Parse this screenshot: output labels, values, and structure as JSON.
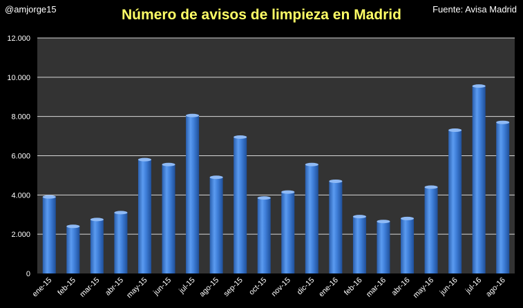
{
  "header": {
    "author": "@amjorge15",
    "source": "Fuente: Avisa Madrid"
  },
  "colors": {
    "background": "#000000",
    "plot_area": "#333333",
    "gridline": "#d9d9d9",
    "bar": "#3f7fd9",
    "title": "#ffff66",
    "text": "#ffffff"
  },
  "chart_data": {
    "type": "bar",
    "title": "Número de avisos de limpieza en Madrid",
    "xlabel": "",
    "ylabel": "",
    "ylim": [
      0,
      12000
    ],
    "yticks": [
      0,
      2000,
      4000,
      6000,
      8000,
      10000,
      12000
    ],
    "ytick_labels": [
      "0",
      "2.000",
      "4.000",
      "6.000",
      "8.000",
      "10.000",
      "12.000"
    ],
    "grid": true,
    "legend": "none",
    "categories": [
      "ene-15",
      "feb-15",
      "mar-15",
      "abr-15",
      "may-15",
      "jun-15",
      "jul-15",
      "ago-15",
      "sep-15",
      "oct-15",
      "nov-15",
      "dic-15",
      "ene-16",
      "feb-16",
      "mar-16",
      "abr-16",
      "may-16",
      "jun-16",
      "jul-16",
      "ago-16"
    ],
    "values": [
      3900,
      2400,
      2750,
      3100,
      5800,
      5550,
      8050,
      4900,
      6950,
      3850,
      4150,
      5550,
      4700,
      2900,
      2650,
      2800,
      4400,
      7300,
      9550,
      7700
    ]
  }
}
